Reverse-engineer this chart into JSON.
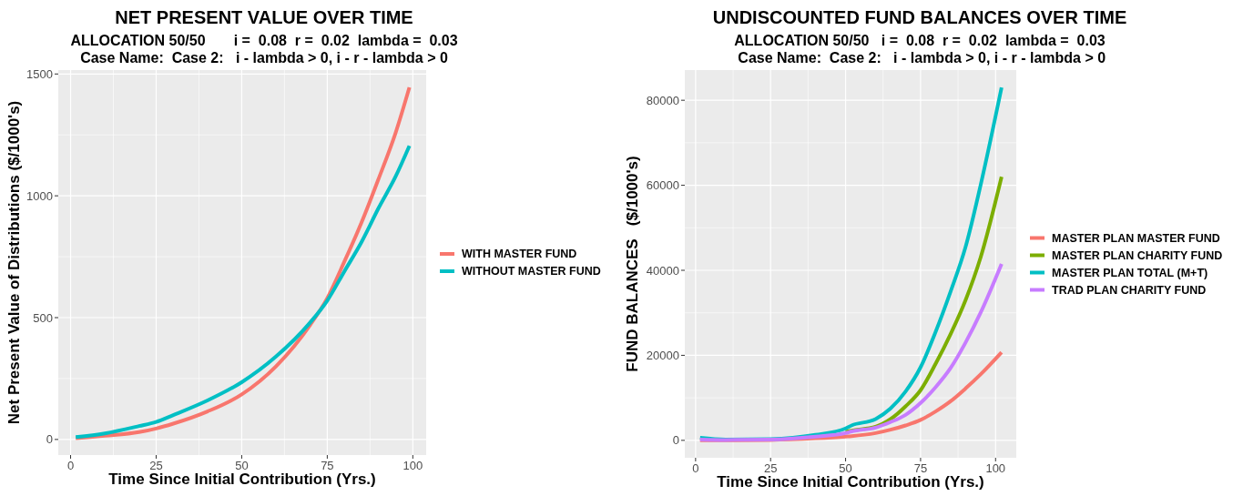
{
  "chart_data": [
    {
      "type": "line",
      "title": "NET PRESENT VALUE OVER TIME",
      "subtitle": "ALLOCATION 50/50       i =  0.08  r =  0.02  lambda =  0.03\nCase Name:  Case 2:   i - lambda > 0, i - r - lambda > 0",
      "xlabel": "Time Since Initial Contribution (Yrs.)",
      "ylabel": "Net Present Value of Distributions ($/1000's)",
      "x": [
        1.5,
        10,
        20,
        25,
        30,
        40,
        50,
        60,
        70,
        75,
        80,
        85,
        90,
        95,
        99
      ],
      "series": [
        {
          "name": "WITH MASTER FUND",
          "color": "#f8766d",
          "values": [
            5,
            15,
            30,
            45,
            65,
            115,
            185,
            300,
            470,
            580,
            730,
            890,
            1070,
            1260,
            1445
          ]
        },
        {
          "name": "WITHOUT MASTER FUND",
          "color": "#00bfc4",
          "values": [
            10,
            25,
            55,
            72,
            100,
            160,
            235,
            340,
            480,
            570,
            690,
            810,
            950,
            1080,
            1205
          ]
        }
      ],
      "xlim": [
        -3.6,
        103.9
      ],
      "ylim": [
        -64,
        1516
      ],
      "xticks": [
        0,
        25,
        50,
        75,
        100
      ],
      "yticks": [
        0,
        500,
        1000,
        1500
      ],
      "grid": true,
      "legend": "right",
      "line_style": "solid"
    },
    {
      "type": "line",
      "title": "UNDISCOUNTED FUND BALANCES OVER TIME",
      "subtitle": "ALLOCATION 50/50   i =  0.08  r =  0.02  lambda =  0.03\n Case Name:  Case 2:   i - lambda > 0, i - r - lambda > 0",
      "xlabel": "Time Since Initial Contribution (Yrs.)",
      "ylabel": "FUND BALANCES   ($/1000's)",
      "x": [
        1.5,
        10,
        25,
        40,
        50,
        52,
        60,
        65,
        70,
        75,
        80,
        85,
        90,
        95,
        102
      ],
      "series": [
        {
          "name": "MASTER PLAN MASTER FUND",
          "color": "#f8766d",
          "values": [
            0,
            0,
            100,
            500,
            900,
            1000,
            1700,
            2500,
            3500,
            4800,
            6800,
            9200,
            12200,
            15500,
            20700
          ]
        },
        {
          "name": "MASTER PLAN CHARITY FUND",
          "color": "#7cae00",
          "values": [
            null,
            null,
            null,
            null,
            2000,
            2300,
            3200,
            5000,
            8000,
            11800,
            18000,
            25000,
            33000,
            43000,
            62000
          ]
        },
        {
          "name": "MASTER PLAN TOTAL (M+T)",
          "color": "#00bfc4",
          "values": [
            600,
            200,
            300,
            1300,
            2800,
            3500,
            5000,
            7500,
            11500,
            17200,
            25500,
            35000,
            45500,
            60000,
            83000
          ]
        },
        {
          "name": "TRAD PLAN CHARITY FUND",
          "color": "#c77cff",
          "values": [
            200,
            100,
            200,
            900,
            1700,
            2100,
            3000,
            4300,
            6000,
            8800,
            12500,
            17000,
            23000,
            30000,
            41500
          ]
        }
      ],
      "xlim": [
        -3.6,
        106.9
      ],
      "ylim": [
        -4100,
        87100
      ],
      "xticks": [
        0,
        25,
        50,
        75,
        100
      ],
      "yticks": [
        0,
        20000,
        40000,
        60000,
        80000
      ],
      "grid": true,
      "legend": "right",
      "line_style": "solid"
    }
  ]
}
